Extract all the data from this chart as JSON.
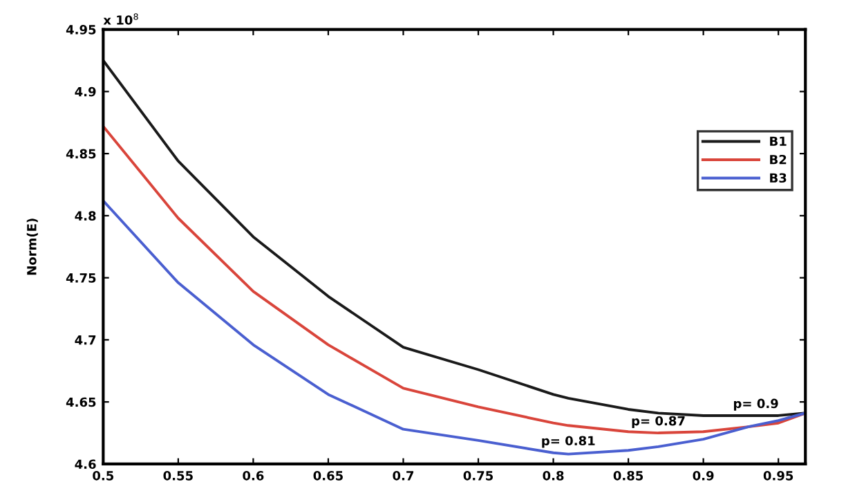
{
  "chart_data": {
    "type": "line",
    "ylabel": "Norm(E)",
    "x": [
      0.5,
      0.55,
      0.6,
      0.65,
      0.7,
      0.75,
      0.8,
      0.81,
      0.85,
      0.87,
      0.9,
      0.93,
      0.95,
      0.968
    ],
    "series": [
      {
        "name": "B1",
        "color": "#1a1a1a",
        "values": [
          4.925,
          4.844,
          4.783,
          4.735,
          4.694,
          4.676,
          4.656,
          4.653,
          4.644,
          4.641,
          4.639,
          4.639,
          4.639,
          4.641
        ]
      },
      {
        "name": "B2",
        "color": "#d9453b",
        "values": [
          4.872,
          4.798,
          4.739,
          4.696,
          4.661,
          4.646,
          4.633,
          4.631,
          4.626,
          4.625,
          4.626,
          4.63,
          4.633,
          4.641
        ]
      },
      {
        "name": "B3",
        "color": "#4a5fd0",
        "values": [
          4.812,
          4.746,
          4.696,
          4.656,
          4.628,
          4.619,
          4.609,
          4.608,
          4.611,
          4.614,
          4.62,
          4.63,
          4.635,
          4.641
        ]
      }
    ],
    "annotations": [
      "x 10$^{8}$",
      {
        "text": "p= 0.81",
        "x": 0.81,
        "y": 4.613
      },
      {
        "text": "p= 0.87",
        "x": 0.87,
        "y": 4.629
      },
      {
        "text": "p= 0.9",
        "x": 0.935,
        "y": 4.643
      }
    ],
    "xlim": [
      0.5,
      0.968
    ],
    "xticks": [
      0.5,
      0.55,
      0.6,
      0.65,
      0.7,
      0.75,
      0.8,
      0.85,
      0.9,
      0.95
    ],
    "ylim": [
      4.6,
      4.95
    ],
    "yticks": [
      4.6,
      4.65,
      4.7,
      4.75,
      4.8,
      4.85,
      4.9,
      4.95
    ],
    "grid": false,
    "legend": "top right",
    "marker": "none",
    "line_style": "solid"
  }
}
